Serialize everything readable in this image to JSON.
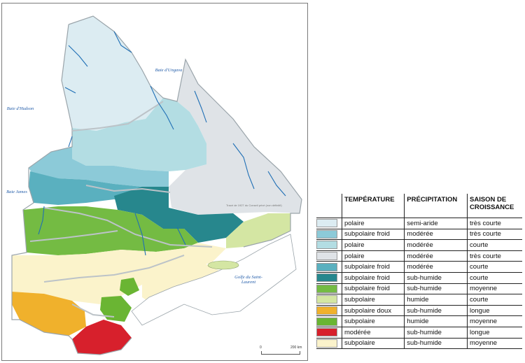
{
  "water_labels": {
    "ungava": "Baie d'Ungava",
    "hudson": "Baie d'Hudson",
    "james": "Baie James",
    "golfe": "Golfe du Saint-Laurent"
  },
  "scale": {
    "start": "0",
    "end": "200 km"
  },
  "credit": "Tracé de 1927 du Conseil privé (non définitif)",
  "legend": {
    "headers": {
      "temperature": "TEMPÉRATURE",
      "precipitation": "PRÉCIPITATION",
      "season": "SAISON DE CROISSANCE"
    },
    "rows": [
      {
        "color": "#dcecf2",
        "temperature": "polaire",
        "precipitation": "semi-aride",
        "season": "très courte"
      },
      {
        "color": "#8ccad8",
        "temperature": "subpolaire froid",
        "precipitation": "modérée",
        "season": "très courte"
      },
      {
        "color": "#b3dde3",
        "temperature": "polaire",
        "precipitation": "modérée",
        "season": "courte"
      },
      {
        "color": "#dfe3e7",
        "temperature": "polaire",
        "precipitation": "modérée",
        "season": "très courte"
      },
      {
        "color": "#5ab0bf",
        "temperature": "subpolaire froid",
        "precipitation": "modérée",
        "season": "courte"
      },
      {
        "color": "#27878d",
        "temperature": "subpolaire froid",
        "precipitation": "sub-humide",
        "season": "courte"
      },
      {
        "color": "#74bb43",
        "temperature": "subpolaire froid",
        "precipitation": "sub-humide",
        "season": "moyenne"
      },
      {
        "color": "#d4e6a3",
        "temperature": "subpolaire",
        "precipitation": "humide",
        "season": "courte"
      },
      {
        "color": "#f0b12c",
        "temperature": "subpolaire doux",
        "precipitation": "sub-humide",
        "season": "longue"
      },
      {
        "color": "#6ab533",
        "temperature": "subpolaire",
        "precipitation": "humide",
        "season": "moyenne"
      },
      {
        "color": "#d7202c",
        "temperature": "modérée",
        "precipitation": "sub-humide",
        "season": "longue"
      },
      {
        "color": "#fbf3cb",
        "temperature": "subpolaire",
        "precipitation": "sub-humide",
        "season": "moyenne"
      }
    ]
  }
}
